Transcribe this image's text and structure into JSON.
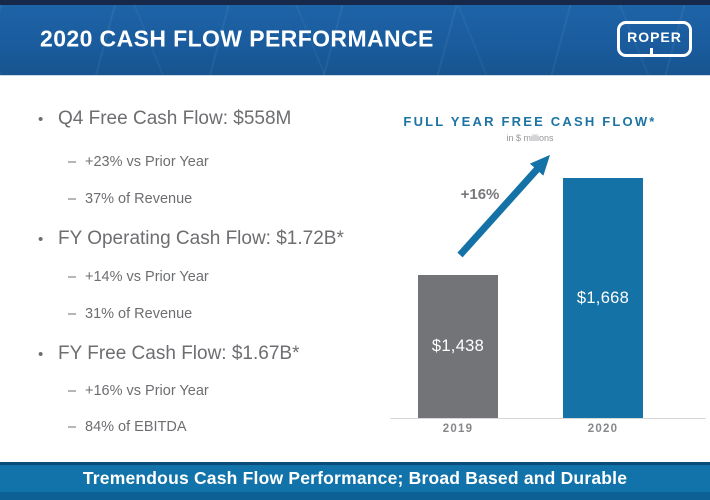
{
  "header": {
    "title": "2020 CASH FLOW PERFORMANCE",
    "logo_text": "ROPER"
  },
  "glyphs": {
    "bullet": "•",
    "dash": "–"
  },
  "bullets": [
    {
      "label": "Q4 Free Cash Flow: $558M",
      "subs": [
        "+23% vs Prior Year",
        "37% of Revenue"
      ]
    },
    {
      "label": "FY Operating Cash Flow: $1.72B*",
      "subs": [
        "+14% vs Prior Year",
        "31% of Revenue"
      ]
    },
    {
      "label": "FY Free Cash Flow: $1.67B*",
      "subs": [
        "+16% vs Prior Year",
        "84% of EBITDA"
      ]
    }
  ],
  "chart": {
    "title": "FULL YEAR FREE CASH FLOW*",
    "subtitle": "in $ millions",
    "growth_label": "+16%",
    "bars": [
      {
        "year": "2019",
        "label": "$1,438"
      },
      {
        "year": "2020",
        "label": "$1,668"
      }
    ]
  },
  "chart_data": {
    "type": "bar",
    "title": "FULL YEAR FREE CASH FLOW*",
    "subtitle": "in $ millions",
    "unit": "$ millions",
    "categories": [
      "2019",
      "2020"
    ],
    "values": [
      1438,
      1668
    ],
    "data_labels": [
      "$1,438",
      "$1,668"
    ],
    "bar_colors": [
      "#737477",
      "#1572A6"
    ],
    "annotations": [
      {
        "text": "+16%",
        "type": "growth-arrow",
        "from": "2019",
        "to": "2020"
      }
    ],
    "baseline_visible": true,
    "gridlines": false,
    "legend": false
  },
  "footer": {
    "banner_text": "Tremendous Cash Flow Performance; Broad Based and Durable"
  },
  "colors": {
    "header_blue": "#1A5C9E",
    "header_strip_navy": "#16294A",
    "chart_title_blue": "#1B74A3",
    "bar_gray": "#737477",
    "bar_blue": "#1572A6",
    "banner_blue": "#1173A9",
    "banner_edge_dark": "#0A4B77",
    "banner_bottom": "#0D6094",
    "text_gray": "#6D6E71",
    "muted_gray": "#85878A",
    "arrow_blue": "#1572A6"
  }
}
